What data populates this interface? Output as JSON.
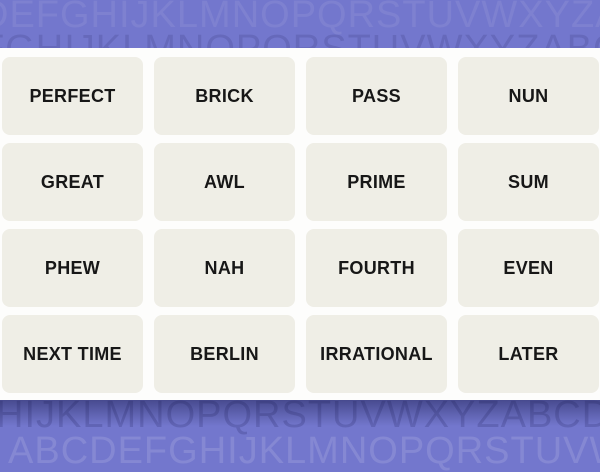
{
  "game": "word-grouping-puzzle",
  "board": {
    "rows": 4,
    "cols": 4,
    "tiles": [
      "PERFECT",
      "BRICK",
      "PASS",
      "NUN",
      "GREAT",
      "AWL",
      "PRIME",
      "SUM",
      "PHEW",
      "NAH",
      "FOURTH",
      "EVEN",
      "NEXT TIME",
      "BERLIN",
      "IRRATIONAL",
      "LATER"
    ]
  },
  "background": {
    "top_rows": [
      "DEFGHIJKLMNOPQRSTUVWXYZABC",
      "FGHIJKLMNOPQRSTUVWXYZABCDE"
    ],
    "bottom_rows": [
      "HIJKLMNOPQRSTUVWXYZABCDEF",
      "ABCDEFGHIJKLMNOPQRSTUVWX"
    ]
  },
  "colors": {
    "background_purple": "#7377cd",
    "board_white": "#fdfdfc",
    "tile_cream": "#efeee6",
    "tile_text": "#171717",
    "board_shadow": "rgba(18,20,68,0.45)",
    "letters_light": "rgba(255,255,255,0.10)",
    "letters_dark": "rgba(16,18,70,0.15)"
  }
}
